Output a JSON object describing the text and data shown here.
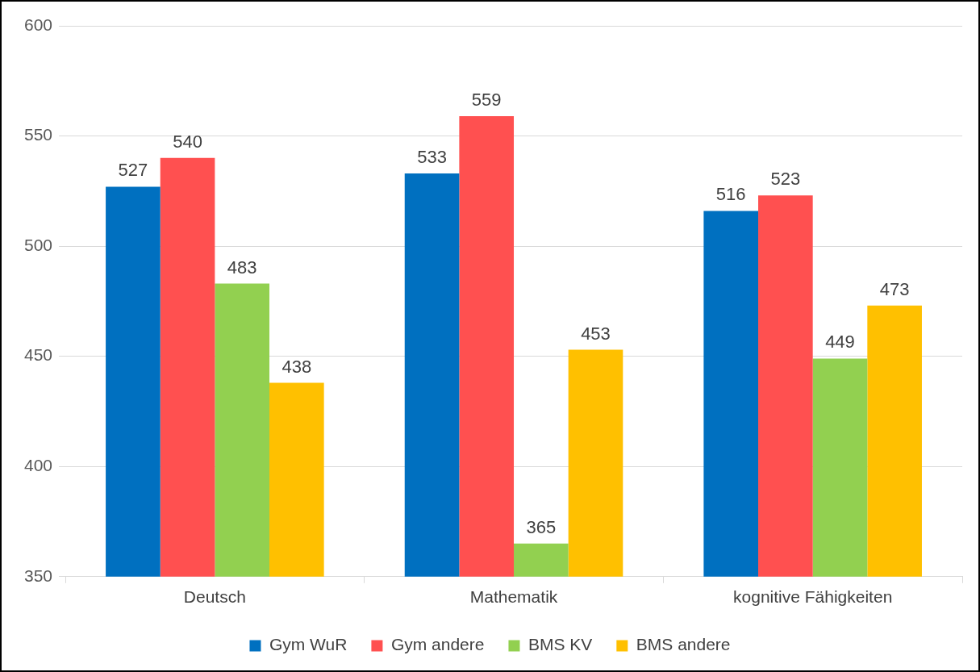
{
  "chart_data": {
    "type": "bar",
    "categories": [
      "Deutsch",
      "Mathematik",
      "kognitive Fähigkeiten"
    ],
    "series": [
      {
        "name": "Gym WuR",
        "color": "#0070c0",
        "values": [
          527,
          533,
          516
        ]
      },
      {
        "name": "Gym andere",
        "color": "#ff5050",
        "values": [
          540,
          559,
          523
        ]
      },
      {
        "name": "BMS KV",
        "color": "#92d050",
        "values": [
          483,
          365,
          449
        ]
      },
      {
        "name": "BMS andere",
        "color": "#ffc000",
        "values": [
          438,
          453,
          473
        ]
      }
    ],
    "ylim": [
      350,
      600
    ],
    "yticks": [
      350,
      400,
      450,
      500,
      550,
      600
    ],
    "grid": "y",
    "legend": "bottom",
    "data_labels": true
  }
}
